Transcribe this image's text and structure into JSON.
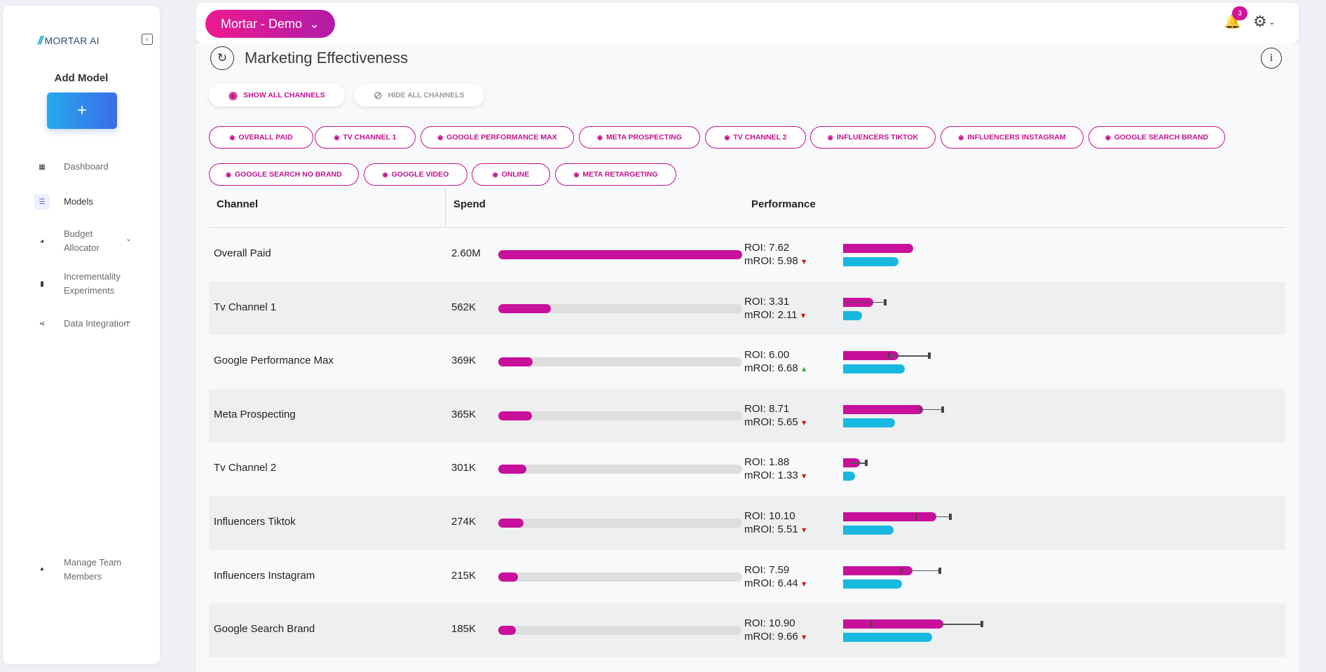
{
  "sidebar": {
    "logo_mark": "//",
    "logo_text": "MORTAR AI",
    "add_model_title": "Add Model",
    "add_model_icon": "+",
    "nav": [
      {
        "label": "Dashboard",
        "icon": "grid-icon",
        "glyph": "▦"
      },
      {
        "label": "Models",
        "icon": "list-icon",
        "glyph": "☰"
      },
      {
        "label": "Budget Allocator",
        "icon": "pie-chart-icon",
        "glyph": "◕"
      },
      {
        "label": "Incrementality Experiments",
        "icon": "bar-chart-icon",
        "glyph": "▮"
      },
      {
        "label": "Data Integration",
        "icon": "share-icon",
        "glyph": "⋖"
      },
      {
        "label": "Manage Team Members",
        "icon": "team-icon",
        "glyph": "✦"
      }
    ]
  },
  "topbar": {
    "project": "Mortar - Demo",
    "notifications": "3"
  },
  "main": {
    "title": "Marketing Effectiveness",
    "show_all": "Show all channels",
    "hide_all": "Hide all channels",
    "chips": [
      "Overall Paid",
      "Tv Channel 1",
      "Google Performance Max",
      "Meta Prospecting",
      "Tv Channel 2",
      "Influencers Tiktok",
      "Influencers Instagram",
      "Google Search Brand",
      "Google Search No Brand",
      "Google Video",
      "Online",
      "Meta Retargeting"
    ],
    "table": {
      "headers": {
        "channel": "Channel",
        "spend": "Spend",
        "performance": "Performance"
      },
      "rows": [
        {
          "channel": "Overall Paid",
          "spend": "2.60M",
          "roi": "ROI: 7.62",
          "mroi": "mROI: 5.98",
          "trend": "down"
        },
        {
          "channel": "Tv Channel 1",
          "spend": "562K",
          "roi": "ROI: 3.31",
          "mroi": "mROI: 2.11",
          "trend": "down"
        },
        {
          "channel": "Google Performance Max",
          "spend": "369K",
          "roi": "ROI: 6.00",
          "mroi": "mROI: 6.68",
          "trend": "up"
        },
        {
          "channel": "Meta Prospecting",
          "spend": "365K",
          "roi": "ROI: 8.71",
          "mroi": "mROI: 5.65",
          "trend": "down"
        },
        {
          "channel": "Tv Channel 2",
          "spend": "301K",
          "roi": "ROI: 1.88",
          "mroi": "mROI: 1.33",
          "trend": "down"
        },
        {
          "channel": "Influencers Tiktok",
          "spend": "274K",
          "roi": "ROI: 10.10",
          "mroi": "mROI: 5.51",
          "trend": "down"
        },
        {
          "channel": "Influencers Instagram",
          "spend": "215K",
          "roi": "ROI: 7.59",
          "mroi": "mROI: 6.44",
          "trend": "down"
        },
        {
          "channel": "Google Search Brand",
          "spend": "185K",
          "roi": "ROI: 10.90",
          "mroi": "mROI: 9.66",
          "trend": "down"
        }
      ]
    }
  },
  "colors": {
    "accent": "#c8109a",
    "mroi": "#18b8e0",
    "down": "#d01a1a",
    "up": "#38b24a"
  }
}
